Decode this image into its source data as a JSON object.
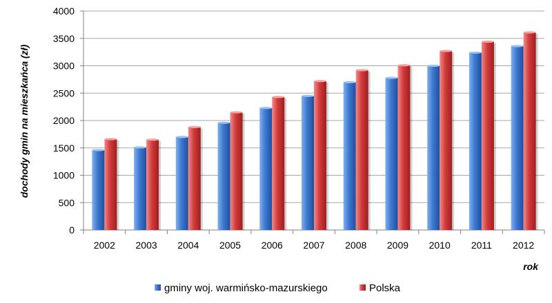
{
  "chart_data": {
    "type": "bar",
    "title": "",
    "xlabel": "rok",
    "ylabel": "dochody gmin na mieszkańca (zł)",
    "categories": [
      "2002",
      "2003",
      "2004",
      "2005",
      "2006",
      "2007",
      "2008",
      "2009",
      "2010",
      "2011",
      "2012"
    ],
    "series": [
      {
        "name": "gminy woj. warmińsko-mazurskiego",
        "color": "#3d78cf",
        "values": [
          1460,
          1510,
          1700,
          1960,
          2230,
          2450,
          2700,
          2780,
          3000,
          3240,
          3360
        ]
      },
      {
        "name": "Polska",
        "color": "#d23a3a",
        "values": [
          1660,
          1650,
          1880,
          2150,
          2430,
          2720,
          2920,
          3010,
          3270,
          3440,
          3610
        ]
      }
    ],
    "yticks": [
      "0",
      "500",
      "1000",
      "1500",
      "2000",
      "2500",
      "3000",
      "3500",
      "4000"
    ],
    "ylim": [
      0,
      4000
    ],
    "grid": true,
    "legend_position": "bottom"
  }
}
